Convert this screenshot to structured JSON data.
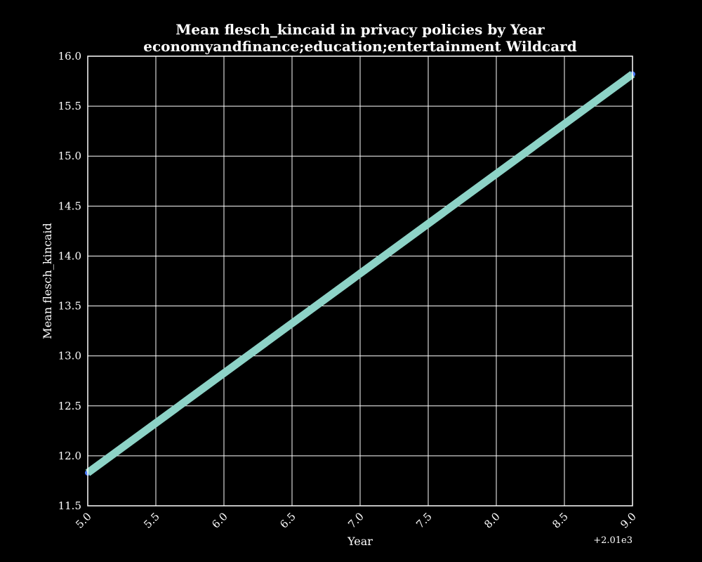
{
  "chart_data": {
    "type": "line",
    "title": "Mean flesch_kincaid in privacy policies by Year",
    "subtitle": "economyandfinance;education;entertainment Wildcard",
    "xlabel": "Year",
    "ylabel": "Mean flesch_kincaid",
    "x_offset_label": "+2.01e3",
    "xlim": [
      5.0,
      9.0
    ],
    "ylim": [
      11.5,
      16.0
    ],
    "x_ticks": [
      "5.0",
      "5.5",
      "6.0",
      "6.5",
      "7.0",
      "7.5",
      "8.0",
      "8.5",
      "9.0"
    ],
    "y_ticks": [
      "11.5",
      "12.0",
      "12.5",
      "13.0",
      "13.5",
      "14.0",
      "14.5",
      "15.0",
      "15.5",
      "16.0"
    ],
    "grid": true,
    "series": [
      {
        "x": [
          5.0,
          9.0
        ],
        "y": [
          11.83,
          15.82
        ],
        "color": "#8dd3c7",
        "marker_color": "#4a7dff"
      }
    ]
  }
}
